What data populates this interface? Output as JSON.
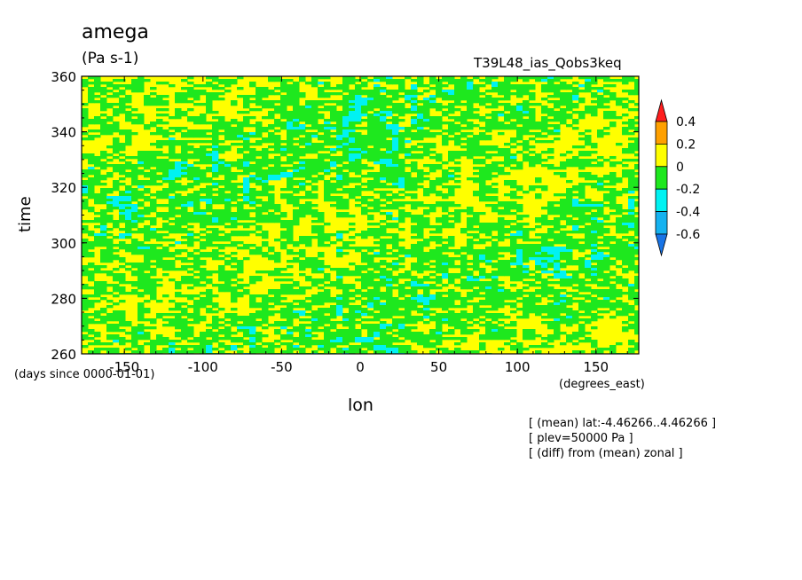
{
  "chart_data": {
    "type": "heatmap",
    "title": "amega",
    "units": "(Pa s-1)",
    "run_name": "T39L48_ias_Qobs3keq",
    "xlabel": "lon",
    "ylabel": "time",
    "x_units": "(degrees_east)",
    "time_origin": "(days since 0000-01-01)",
    "xlim": [
      -177.2,
      177.2
    ],
    "ylim": [
      260,
      360
    ],
    "x_ticks": [
      -150,
      -100,
      -50,
      0,
      50,
      100,
      150
    ],
    "y_ticks": [
      260,
      280,
      300,
      320,
      340,
      360
    ],
    "x_tick_labels": [
      "-150",
      "-100",
      "-50",
      "0",
      "50",
      "100",
      "150"
    ],
    "y_tick_labels": [
      "260",
      "280",
      "300",
      "320",
      "340",
      "360"
    ],
    "colorbar": {
      "levels": [
        -0.6,
        -0.4,
        -0.2,
        0,
        0.2,
        0.4
      ],
      "labels": [
        "0.4",
        "0.2",
        "0",
        "-0.2",
        "-0.4",
        "-0.6"
      ],
      "colors": [
        "#1874e6",
        "#15b2f0",
        "#00f2f2",
        "#1ee81e",
        "#ffff00",
        "#ffa000",
        "#ff1e1e"
      ]
    },
    "dominant_values": "mostly yellow (0 to 0.2) and green (-0.2 to 0), with scattered cyan (-0.4 to -0.2) patches",
    "grid": false
  },
  "notes": [
    "[ (mean) lat:-4.46266..4.46266 ]",
    "[ plev=50000 Pa ]",
    "[ (diff) from (mean) zonal ]"
  ]
}
